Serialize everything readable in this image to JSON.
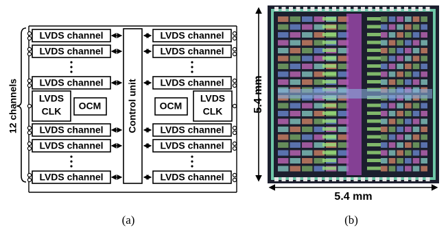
{
  "figure_a": {
    "brace_label": "12 channels",
    "left_channels": [
      "LVDS channel",
      "LVDS channel",
      "LVDS channel",
      "LVDS channel",
      "LVDS channel",
      "LVDS channel"
    ],
    "right_channels": [
      "LVDS channel",
      "LVDS channel",
      "LVDS channel",
      "LVDS channel",
      "LVDS channel",
      "LVDS channel"
    ],
    "left_clk": [
      "LVDS",
      "CLK"
    ],
    "right_clk": [
      "LVDS",
      "CLK"
    ],
    "left_ocm": "OCM",
    "right_ocm": "OCM",
    "control": "Control unit",
    "caption": "(a)"
  },
  "figure_b": {
    "height_label": "5.4 mm",
    "width_label": "5.4 mm",
    "caption": "(b)"
  }
}
